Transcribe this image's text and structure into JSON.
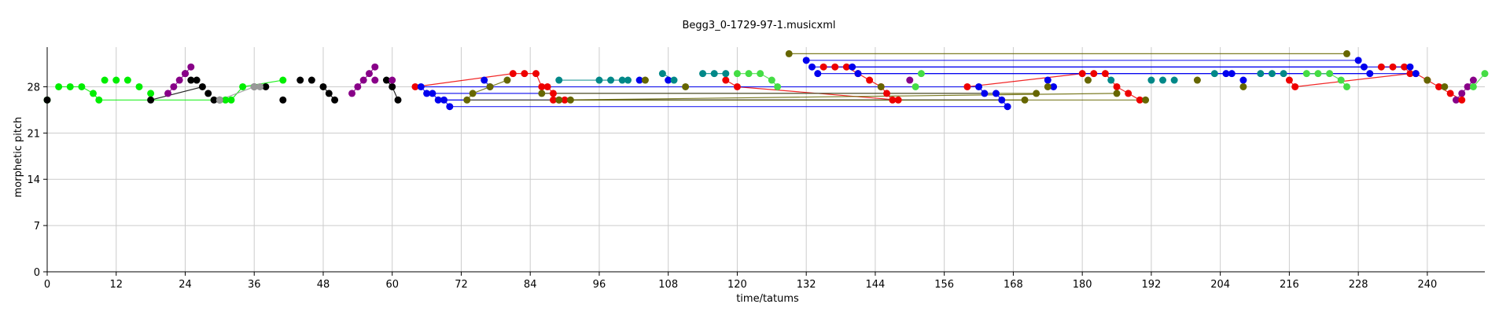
{
  "chart_data": {
    "type": "scatter",
    "title": "Begg3_0-1729-97-1.musicxml",
    "xlabel": "time/tatums",
    "ylabel": "morphetic pitch",
    "xlim": [
      0,
      250
    ],
    "ylim": [
      0,
      34
    ],
    "xticks": [
      0,
      12,
      24,
      36,
      48,
      60,
      72,
      84,
      96,
      108,
      120,
      132,
      144,
      156,
      168,
      180,
      192,
      204,
      216,
      228,
      240
    ],
    "yticks": [
      0,
      7,
      14,
      21,
      28
    ],
    "grid": true,
    "series": [
      {
        "color": "#00ee00",
        "x": [
          0,
          2,
          4,
          6,
          8,
          9,
          10,
          12,
          14,
          16,
          18,
          31,
          32,
          34,
          41
        ],
        "y": [
          26,
          28,
          28,
          28,
          27,
          26,
          29,
          29,
          29,
          28,
          27,
          26,
          26,
          28,
          29
        ],
        "links": [
          [
            1,
            2
          ],
          [
            2,
            3
          ],
          [
            3,
            4
          ],
          [
            4,
            5
          ],
          [
            5,
            11
          ],
          [
            11,
            12
          ],
          [
            12,
            13
          ],
          [
            13,
            14
          ]
        ]
      },
      {
        "color": "#000000",
        "x": [
          0,
          18,
          24,
          25,
          26,
          27,
          28,
          29,
          30,
          36,
          38,
          41,
          44,
          46,
          48,
          49,
          50,
          59,
          60,
          61
        ],
        "y": [
          26,
          26,
          30,
          29,
          29,
          28,
          27,
          26,
          26,
          28,
          28,
          26,
          29,
          29,
          28,
          27,
          26,
          29,
          28,
          26
        ],
        "links": [
          [
            1,
            5
          ],
          [
            9,
            10
          ],
          [
            14,
            15
          ],
          [
            15,
            16
          ],
          [
            17,
            18
          ],
          [
            18,
            19
          ]
        ]
      },
      {
        "color": "#880088",
        "x": [
          21,
          22,
          23,
          24,
          25,
          53,
          54,
          55,
          56,
          57,
          57,
          60,
          150,
          245,
          246,
          247,
          248
        ],
        "y": [
          27,
          28,
          29,
          30,
          31,
          27,
          28,
          29,
          30,
          31,
          29,
          29,
          29,
          26,
          27,
          28,
          29
        ],
        "links": [
          [
            0,
            1
          ],
          [
            1,
            2
          ],
          [
            2,
            3
          ],
          [
            3,
            4
          ],
          [
            5,
            6
          ],
          [
            6,
            7
          ],
          [
            7,
            8
          ],
          [
            8,
            9
          ],
          [
            13,
            14
          ],
          [
            14,
            15
          ],
          [
            15,
            16
          ]
        ]
      },
      {
        "color": "#ee0000",
        "x": [
          64,
          81,
          83,
          85,
          86,
          87,
          88,
          88,
          89,
          90,
          118,
          120,
          135,
          137,
          139,
          141,
          143,
          145,
          146,
          147,
          148,
          160,
          180,
          182,
          184,
          186,
          188,
          190,
          216,
          217,
          232,
          234,
          236,
          237,
          238,
          240,
          242,
          244,
          246
        ],
        "y": [
          28,
          30,
          30,
          30,
          28,
          28,
          27,
          26,
          26,
          26,
          29,
          28,
          31,
          31,
          31,
          30,
          29,
          28,
          27,
          26,
          26,
          28,
          30,
          30,
          30,
          28,
          27,
          26,
          29,
          28,
          31,
          31,
          31,
          30,
          30,
          29,
          28,
          27,
          26
        ],
        "links": [
          [
            0,
            1
          ],
          [
            1,
            2
          ],
          [
            2,
            3
          ],
          [
            3,
            4
          ],
          [
            4,
            5
          ],
          [
            5,
            6
          ],
          [
            6,
            7
          ],
          [
            10,
            11
          ],
          [
            11,
            20
          ],
          [
            12,
            13
          ],
          [
            13,
            14
          ],
          [
            14,
            15
          ],
          [
            15,
            16
          ],
          [
            16,
            17
          ],
          [
            17,
            18
          ],
          [
            18,
            19
          ],
          [
            21,
            22
          ],
          [
            22,
            23
          ],
          [
            23,
            24
          ],
          [
            24,
            25
          ],
          [
            25,
            26
          ],
          [
            26,
            27
          ],
          [
            28,
            29
          ],
          [
            29,
            33
          ],
          [
            30,
            31
          ],
          [
            31,
            32
          ],
          [
            32,
            33
          ],
          [
            33,
            34
          ],
          [
            34,
            35
          ],
          [
            35,
            36
          ],
          [
            36,
            37
          ],
          [
            37,
            38
          ]
        ]
      },
      {
        "color": "#0000ee",
        "x": [
          65,
          66,
          67,
          68,
          69,
          70,
          76,
          77,
          103,
          108,
          132,
          133,
          134,
          140,
          141,
          162,
          163,
          165,
          166,
          167,
          174,
          175,
          205,
          206,
          208,
          228,
          229,
          230,
          237,
          238
        ],
        "y": [
          28,
          27,
          27,
          26,
          26,
          25,
          29,
          28,
          29,
          29,
          32,
          31,
          30,
          31,
          30,
          28,
          27,
          27,
          26,
          25,
          29,
          28,
          30,
          30,
          29,
          32,
          31,
          30,
          31,
          30
        ],
        "links": [
          [
            0,
            1
          ],
          [
            1,
            2
          ],
          [
            2,
            3
          ],
          [
            3,
            4
          ],
          [
            4,
            5
          ],
          [
            0,
            15
          ],
          [
            1,
            16
          ],
          [
            3,
            18
          ],
          [
            4,
            18
          ],
          [
            5,
            19
          ],
          [
            6,
            7
          ],
          [
            10,
            25
          ],
          [
            11,
            26
          ],
          [
            12,
            27
          ],
          [
            13,
            28
          ],
          [
            14,
            29
          ],
          [
            15,
            16
          ],
          [
            16,
            17
          ],
          [
            17,
            18
          ],
          [
            18,
            19
          ]
        ]
      },
      {
        "color": "#666600",
        "x": [
          73,
          74,
          77,
          80,
          86,
          89,
          91,
          104,
          111,
          129,
          145,
          170,
          172,
          174,
          181,
          186,
          191,
          200,
          208,
          226,
          240,
          243
        ],
        "y": [
          26,
          27,
          28,
          29,
          27,
          26,
          26,
          29,
          28,
          33,
          28,
          26,
          27,
          28,
          29,
          27,
          26,
          29,
          28,
          33,
          29,
          28
        ],
        "links": [
          [
            0,
            1
          ],
          [
            1,
            2
          ],
          [
            2,
            3
          ],
          [
            0,
            11
          ],
          [
            4,
            12
          ],
          [
            9,
            19
          ],
          [
            5,
            15
          ],
          [
            6,
            16
          ]
        ]
      },
      {
        "color": "#008888",
        "x": [
          89,
          96,
          98,
          100,
          101,
          107,
          109,
          114,
          116,
          118,
          185,
          192,
          194,
          196,
          203,
          211,
          213,
          215
        ],
        "y": [
          29,
          29,
          29,
          29,
          29,
          30,
          29,
          30,
          30,
          30,
          29,
          29,
          29,
          29,
          30,
          30,
          30,
          30
        ],
        "links": [
          [
            0,
            1
          ],
          [
            1,
            2
          ],
          [
            2,
            3
          ],
          [
            3,
            4
          ],
          [
            5,
            6
          ],
          [
            7,
            8
          ],
          [
            8,
            9
          ]
        ]
      },
      {
        "color": "#44dd44",
        "x": [
          120,
          122,
          124,
          126,
          127,
          151,
          152,
          219,
          221,
          223,
          225,
          226,
          248,
          250
        ],
        "y": [
          30,
          30,
          30,
          29,
          28,
          28,
          30,
          30,
          30,
          30,
          29,
          28,
          28,
          30
        ],
        "links": [
          [
            0,
            1
          ],
          [
            1,
            2
          ],
          [
            2,
            3
          ],
          [
            3,
            4
          ],
          [
            7,
            8
          ],
          [
            8,
            9
          ],
          [
            9,
            10
          ],
          [
            10,
            11
          ],
          [
            12,
            13
          ]
        ]
      },
      {
        "color": "#999999",
        "x": [
          30,
          36,
          37
        ],
        "y": [
          26,
          28,
          28
        ],
        "links": [
          [
            0,
            1
          ]
        ]
      }
    ]
  }
}
